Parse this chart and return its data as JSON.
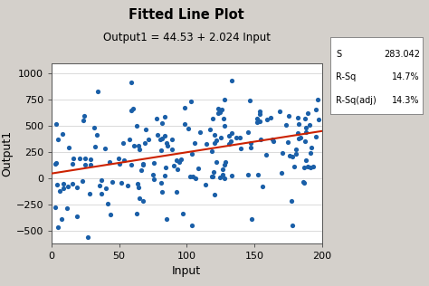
{
  "title": "Fitted Line Plot",
  "subtitle": "Output1 = 44.53 + 2.024 Input",
  "xlabel": "Input",
  "ylabel": "Output1",
  "intercept": 44.53,
  "slope": 2.024,
  "x_range": [
    0,
    200
  ],
  "y_lim": [
    -620,
    1100
  ],
  "x_ticks": [
    0,
    50,
    100,
    150,
    200
  ],
  "y_ticks": [
    -500,
    -250,
    0,
    250,
    500,
    750,
    1000
  ],
  "scatter_color": "#1a5fa8",
  "line_color": "#cc2200",
  "bg_color": "#d4d0cb",
  "plot_bg": "#ffffff",
  "stats_labels": [
    "S",
    "R-Sq",
    "R-Sq(adj)"
  ],
  "stats_values": [
    "283.042",
    "14.7%",
    "14.3%"
  ],
  "seed": 12,
  "n_points": 200
}
